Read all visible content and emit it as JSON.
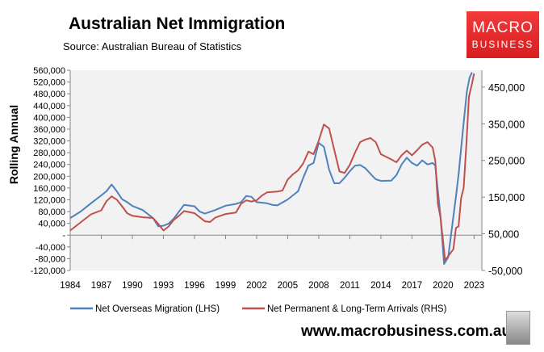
{
  "header": {
    "title": "Australian Net Immigration",
    "source": "Source: Australian Bureau of Statistics"
  },
  "logo": {
    "line1": "MACRO",
    "line2": "BUSINESS"
  },
  "footer": {
    "url": "www.macrobusiness.com.au"
  },
  "colors": {
    "plot_bg": "#f2f2f2",
    "blue": "#4f81bd",
    "red": "#c0504d",
    "logo_red": "#e52b2b"
  },
  "chart_data": {
    "type": "line",
    "title": "Australian Net Immigration",
    "ylabel": "Rolling Annual",
    "ylim_left": [
      -120000,
      560000
    ],
    "ylim_right": [
      -50000,
      496000
    ],
    "xlim": [
      1984,
      2023.75
    ],
    "x_ticks": [
      "1984",
      "1987",
      "1990",
      "1993",
      "1996",
      "1999",
      "2002",
      "2005",
      "2008",
      "2011",
      "2014",
      "2017",
      "2020",
      "2023"
    ],
    "y_left_ticks": [
      {
        "v": 560000,
        "t": "560,000"
      },
      {
        "v": 520000,
        "t": "520,000"
      },
      {
        "v": 480000,
        "t": "480,000"
      },
      {
        "v": 440000,
        "t": "440,000"
      },
      {
        "v": 400000,
        "t": "400,000"
      },
      {
        "v": 360000,
        "t": "360,000"
      },
      {
        "v": 320000,
        "t": "320,000"
      },
      {
        "v": 280000,
        "t": "280,000"
      },
      {
        "v": 240000,
        "t": "240,000"
      },
      {
        "v": 200000,
        "t": "200,000"
      },
      {
        "v": 160000,
        "t": "160,000"
      },
      {
        "v": 120000,
        "t": "120,000"
      },
      {
        "v": 80000,
        "t": "80,000"
      },
      {
        "v": 40000,
        "t": "40,000"
      },
      {
        "v": 0,
        "t": "-"
      },
      {
        "v": -40000,
        "t": "-40,000"
      },
      {
        "v": -80000,
        "t": "-80,000"
      },
      {
        "v": -120000,
        "t": "-120,000"
      }
    ],
    "y_right_ticks": [
      {
        "v": 450000,
        "t": "450,000"
      },
      {
        "v": 350000,
        "t": "350,000"
      },
      {
        "v": 250000,
        "t": "250,000"
      },
      {
        "v": 150000,
        "t": "150,000"
      },
      {
        "v": 50000,
        "t": "50,000"
      },
      {
        "v": -50000,
        "t": "-50,000"
      }
    ],
    "grid": false,
    "legend_position": "bottom",
    "series": [
      {
        "name": "Net Overseas Migration (LHS)",
        "axis": "left",
        "color": "#4f81bd",
        "x": [
          1984,
          1985,
          1986,
          1987,
          1987.5,
          1988,
          1988.5,
          1989,
          1989.5,
          1990,
          1991,
          1992,
          1992.5,
          1993,
          1993.5,
          1994,
          1994.5,
          1995,
          1996,
          1996.5,
          1997,
          1998,
          1999,
          2000,
          2000.5,
          2001,
          2001.5,
          2002,
          2003,
          2003.5,
          2004,
          2005,
          2006,
          2006.5,
          2007,
          2007.5,
          2008,
          2008.5,
          2009,
          2009.5,
          2010,
          2010.5,
          2011,
          2011.5,
          2012,
          2012.5,
          2013,
          2013.5,
          2014,
          2015,
          2015.5,
          2016,
          2016.5,
          2017,
          2017.5,
          2018,
          2018.5,
          2019,
          2019.25,
          2019.75,
          2020.1,
          2020.5,
          2021.25,
          2021.5,
          2021.9,
          2022.3,
          2022.55,
          2022.8
        ],
        "y": [
          58000,
          80000,
          108000,
          135000,
          149000,
          172000,
          149000,
          122000,
          112000,
          99000,
          85000,
          58000,
          30000,
          32000,
          39000,
          56000,
          80000,
          103000,
          98000,
          80000,
          73000,
          85000,
          100000,
          106000,
          112000,
          133000,
          130000,
          112000,
          108000,
          103000,
          101000,
          121000,
          149000,
          195000,
          236000,
          245000,
          313000,
          300000,
          222000,
          176000,
          176000,
          195000,
          217000,
          236000,
          238000,
          227000,
          208000,
          190000,
          184000,
          185000,
          204000,
          240000,
          263000,
          245000,
          236000,
          254000,
          240000,
          245000,
          236000,
          67000,
          -98000,
          -75000,
          131000,
          204000,
          350000,
          487000,
          533000,
          553000
        ]
      },
      {
        "name": "Net Permanent & Long-Term Arrivals (RHS)",
        "axis": "right",
        "color": "#c0504d",
        "x": [
          1984,
          1985,
          1986,
          1987,
          1987.5,
          1988,
          1988.5,
          1989,
          1989.5,
          1990,
          1991,
          1992,
          1992.5,
          1993,
          1993.5,
          1994,
          1994.5,
          1995,
          1996,
          1996.5,
          1997,
          1997.5,
          1998,
          1999,
          2000,
          2000.5,
          2001,
          2001.5,
          2002,
          2002.5,
          2003,
          2004,
          2004.5,
          2005,
          2005.5,
          2006,
          2006.5,
          2007,
          2007.5,
          2008,
          2008.5,
          2009,
          2009.5,
          2010,
          2010.5,
          2011,
          2011.5,
          2012,
          2012.5,
          2013,
          2013.5,
          2014,
          2015,
          2015.5,
          2016,
          2016.5,
          2017,
          2017.5,
          2018,
          2018.5,
          2019,
          2019.25,
          2019.5,
          2019.75,
          2020.2,
          2020.5,
          2021,
          2021.25,
          2021.5,
          2021.75,
          2022,
          2022.25,
          2022.5,
          2022.75,
          2023
        ],
        "y": [
          59000,
          81000,
          103000,
          114000,
          139000,
          152000,
          143000,
          125000,
          106000,
          99000,
          95000,
          93000,
          77000,
          59000,
          70000,
          88000,
          99000,
          112000,
          106000,
          95000,
          84000,
          82000,
          94000,
          104000,
          108000,
          132000,
          141000,
          138000,
          141000,
          154000,
          163000,
          165000,
          168000,
          198000,
          212000,
          223000,
          242000,
          274000,
          267000,
          304000,
          348000,
          337000,
          278000,
          220000,
          216000,
          238000,
          271000,
          300000,
          307000,
          311000,
          300000,
          267000,
          253000,
          245000,
          264000,
          277000,
          264000,
          278000,
          293000,
          300000,
          285000,
          249000,
          132000,
          95000,
          -22000,
          -11000,
          8000,
          66000,
          70000,
          147000,
          176000,
          293000,
          424000,
          454000,
          487000
        ]
      }
    ]
  }
}
